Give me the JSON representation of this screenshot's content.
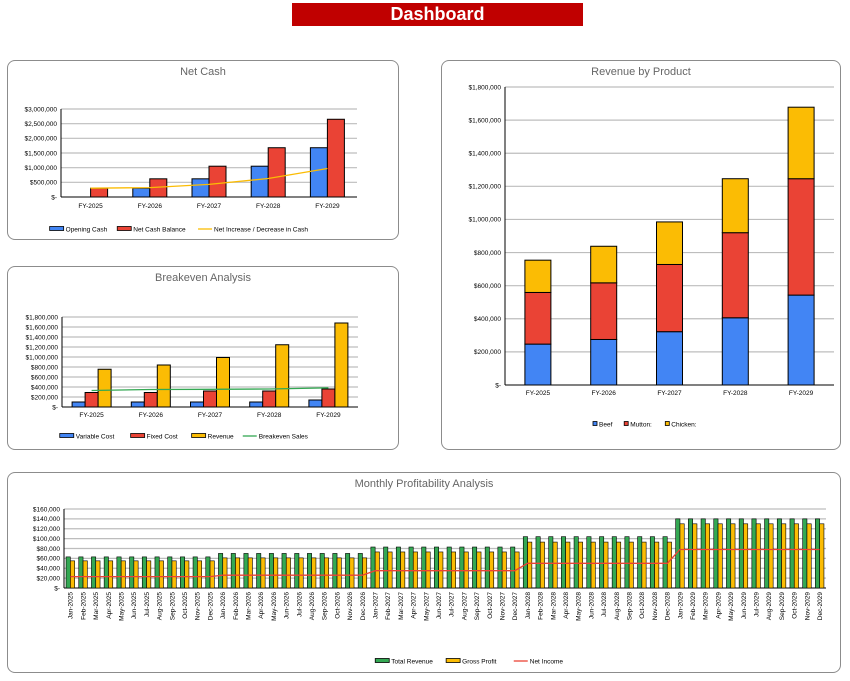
{
  "header": {
    "title": "Dashboard",
    "color": "#c00000"
  },
  "colors": {
    "blue": "#4285f4",
    "red": "#ea4335",
    "yellow": "#fbbc04",
    "green": "#34a853",
    "orange_line": "#fbbc04",
    "netincome_line": "#ea4335"
  },
  "chart_data": [
    {
      "id": "netcash",
      "type": "bar",
      "title": "Net Cash",
      "categories": [
        "FY-2025",
        "FY-2026",
        "FY-2027",
        "FY-2028",
        "FY-2029"
      ],
      "ylim": [
        0,
        3000000
      ],
      "ytick_labels": [
        "$-",
        "$500,000",
        "$1,000,000",
        "$1,500,000",
        "$2,000,000",
        "$2,500,000",
        "$3,000,000"
      ],
      "grid": true,
      "legend": "bottom",
      "series": [
        {
          "name": "Opening Cash",
          "kind": "bar",
          "color": "#4285f4",
          "values": [
            0,
            300000,
            620000,
            1050000,
            1680000
          ]
        },
        {
          "name": "Net Cash Balance",
          "kind": "bar",
          "color": "#ea4335",
          "values": [
            300000,
            620000,
            1050000,
            1680000,
            2650000
          ]
        },
        {
          "name": "Net Increase / Decrease in Cash",
          "kind": "line",
          "color": "#fbbc04",
          "values": [
            300000,
            320000,
            430000,
            630000,
            970000
          ]
        }
      ]
    },
    {
      "id": "breakeven",
      "type": "bar",
      "title": "Breakeven Analysis",
      "categories": [
        "FY-2025",
        "FY-2026",
        "FY-2027",
        "FY-2028",
        "FY-2029"
      ],
      "ylim": [
        0,
        1800000
      ],
      "ytick_labels": [
        "$-",
        "$200,000",
        "$400,000",
        "$600,000",
        "$800,000",
        "$1,000,000",
        "$1,200,000",
        "$1,400,000",
        "$1,600,000",
        "$1,800,000"
      ],
      "grid": true,
      "legend": "bottom",
      "series": [
        {
          "name": "Variable Cost",
          "kind": "bar",
          "color": "#4285f4",
          "values": [
            100000,
            100000,
            100000,
            100000,
            140000
          ]
        },
        {
          "name": "Fixed Cost",
          "kind": "bar",
          "color": "#ea4335",
          "values": [
            290000,
            290000,
            320000,
            320000,
            360000
          ]
        },
        {
          "name": "Revenue",
          "kind": "bar",
          "color": "#fbbc04",
          "values": [
            755000,
            840000,
            990000,
            1245000,
            1680000
          ]
        },
        {
          "name": "Breakeven Sales",
          "kind": "line",
          "color": "#34a853",
          "values": [
            330000,
            350000,
            355000,
            360000,
            385000
          ]
        }
      ]
    },
    {
      "id": "revenue",
      "type": "bar",
      "stacked": true,
      "title": "Revenue by Product",
      "categories": [
        "FY-2025",
        "FY-2026",
        "FY-2027",
        "FY-2028",
        "FY-2029"
      ],
      "ylim": [
        0,
        1800000
      ],
      "ytick_labels": [
        "$-",
        "$200,000",
        "$400,000",
        "$600,000",
        "$800,000",
        "$1,000,000",
        "$1,200,000",
        "$1,400,000",
        "$1,600,000",
        "$1,800,000"
      ],
      "grid": true,
      "legend": "bottom",
      "series": [
        {
          "name": "Beef",
          "kind": "bar",
          "color": "#4285f4",
          "values": [
            247000,
            275000,
            322000,
            406000,
            543000
          ]
        },
        {
          "name": "Mutton:",
          "kind": "bar",
          "color": "#ea4335",
          "values": [
            312000,
            342000,
            406000,
            514000,
            703000
          ]
        },
        {
          "name": "Chicken:",
          "kind": "bar",
          "color": "#fbbc04",
          "values": [
            195000,
            221000,
            257000,
            326000,
            432000
          ]
        }
      ]
    },
    {
      "id": "monthly",
      "type": "bar",
      "title": "Monthly Profitability Analysis",
      "categories": [
        "Jan-2025",
        "Feb-2025",
        "Mar-2025",
        "Apr-2025",
        "May-2025",
        "Jun-2025",
        "Jul-2025",
        "Aug-2025",
        "Sep-2025",
        "Oct-2025",
        "Nov-2025",
        "Dec-2025",
        "Jan-2026",
        "Feb-2026",
        "Mar-2026",
        "Apr-2026",
        "May-2026",
        "Jun-2026",
        "Jul-2026",
        "Aug-2026",
        "Sep-2026",
        "Oct-2026",
        "Nov-2026",
        "Dec-2026",
        "Jan-2027",
        "Feb-2027",
        "Mar-2027",
        "Apr-2027",
        "May-2027",
        "Jun-2027",
        "Jul-2027",
        "Aug-2027",
        "Sep-2027",
        "Oct-2027",
        "Nov-2027",
        "Dec-2027",
        "Jan-2028",
        "Feb-2028",
        "Mar-2028",
        "Apr-2028",
        "May-2028",
        "Jun-2028",
        "Jul-2028",
        "Aug-2028",
        "Sep-2028",
        "Oct-2028",
        "Nov-2028",
        "Dec-2028",
        "Jan-2029",
        "Feb-2029",
        "Mar-2029",
        "Apr-2029",
        "May-2029",
        "Jun-2029",
        "Jul-2029",
        "Aug-2029",
        "Sep-2029",
        "Oct-2029",
        "Nov-2029",
        "Dec-2029"
      ],
      "ylim": [
        0,
        160000
      ],
      "ytick_labels": [
        "$-",
        "$20,000",
        "$40,000",
        "$60,000",
        "$80,000",
        "$100,000",
        "$120,000",
        "$140,000",
        "$160,000"
      ],
      "grid": true,
      "legend": "bottom",
      "series": [
        {
          "name": "Total Revenue",
          "kind": "bar",
          "color": "#34a853",
          "values": [
            63000,
            63000,
            63000,
            63000,
            63000,
            63000,
            63000,
            63000,
            63000,
            63000,
            63000,
            63000,
            70000,
            70000,
            70000,
            70000,
            70000,
            70000,
            70000,
            70000,
            70000,
            70000,
            70000,
            70000,
            83000,
            83000,
            83000,
            83000,
            83000,
            83000,
            83000,
            83000,
            83000,
            83000,
            83000,
            83000,
            104000,
            104000,
            104000,
            104000,
            104000,
            104000,
            104000,
            104000,
            104000,
            104000,
            104000,
            104000,
            140000,
            140000,
            140000,
            140000,
            140000,
            140000,
            140000,
            140000,
            140000,
            140000,
            140000,
            140000
          ]
        },
        {
          "name": "Gross Profit",
          "kind": "bar",
          "color": "#fbbc04",
          "values": [
            55000,
            55000,
            55000,
            55000,
            55000,
            55000,
            55000,
            55000,
            55000,
            55000,
            55000,
            55000,
            61000,
            61000,
            61000,
            61000,
            61000,
            61000,
            61000,
            61000,
            61000,
            61000,
            61000,
            61000,
            73000,
            73000,
            73000,
            73000,
            73000,
            73000,
            73000,
            73000,
            73000,
            73000,
            73000,
            73000,
            93000,
            93000,
            93000,
            93000,
            93000,
            93000,
            93000,
            93000,
            93000,
            93000,
            93000,
            93000,
            130000,
            130000,
            130000,
            130000,
            130000,
            130000,
            130000,
            130000,
            130000,
            130000,
            130000,
            130000
          ]
        },
        {
          "name": "Net Income",
          "kind": "line",
          "color": "#ea4335",
          "values": [
            23000,
            23000,
            23000,
            23000,
            23000,
            23000,
            23000,
            23000,
            23000,
            23000,
            23000,
            23000,
            26000,
            26000,
            26000,
            26000,
            26000,
            26000,
            26000,
            26000,
            26000,
            26000,
            26000,
            26000,
            35000,
            35000,
            35000,
            35000,
            35000,
            35000,
            35000,
            35000,
            35000,
            35000,
            35000,
            35000,
            50000,
            50000,
            50000,
            50000,
            50000,
            50000,
            50000,
            50000,
            50000,
            50000,
            50000,
            50000,
            78000,
            78000,
            78000,
            78000,
            78000,
            78000,
            78000,
            78000,
            78000,
            78000,
            78000,
            78000
          ]
        }
      ]
    }
  ]
}
